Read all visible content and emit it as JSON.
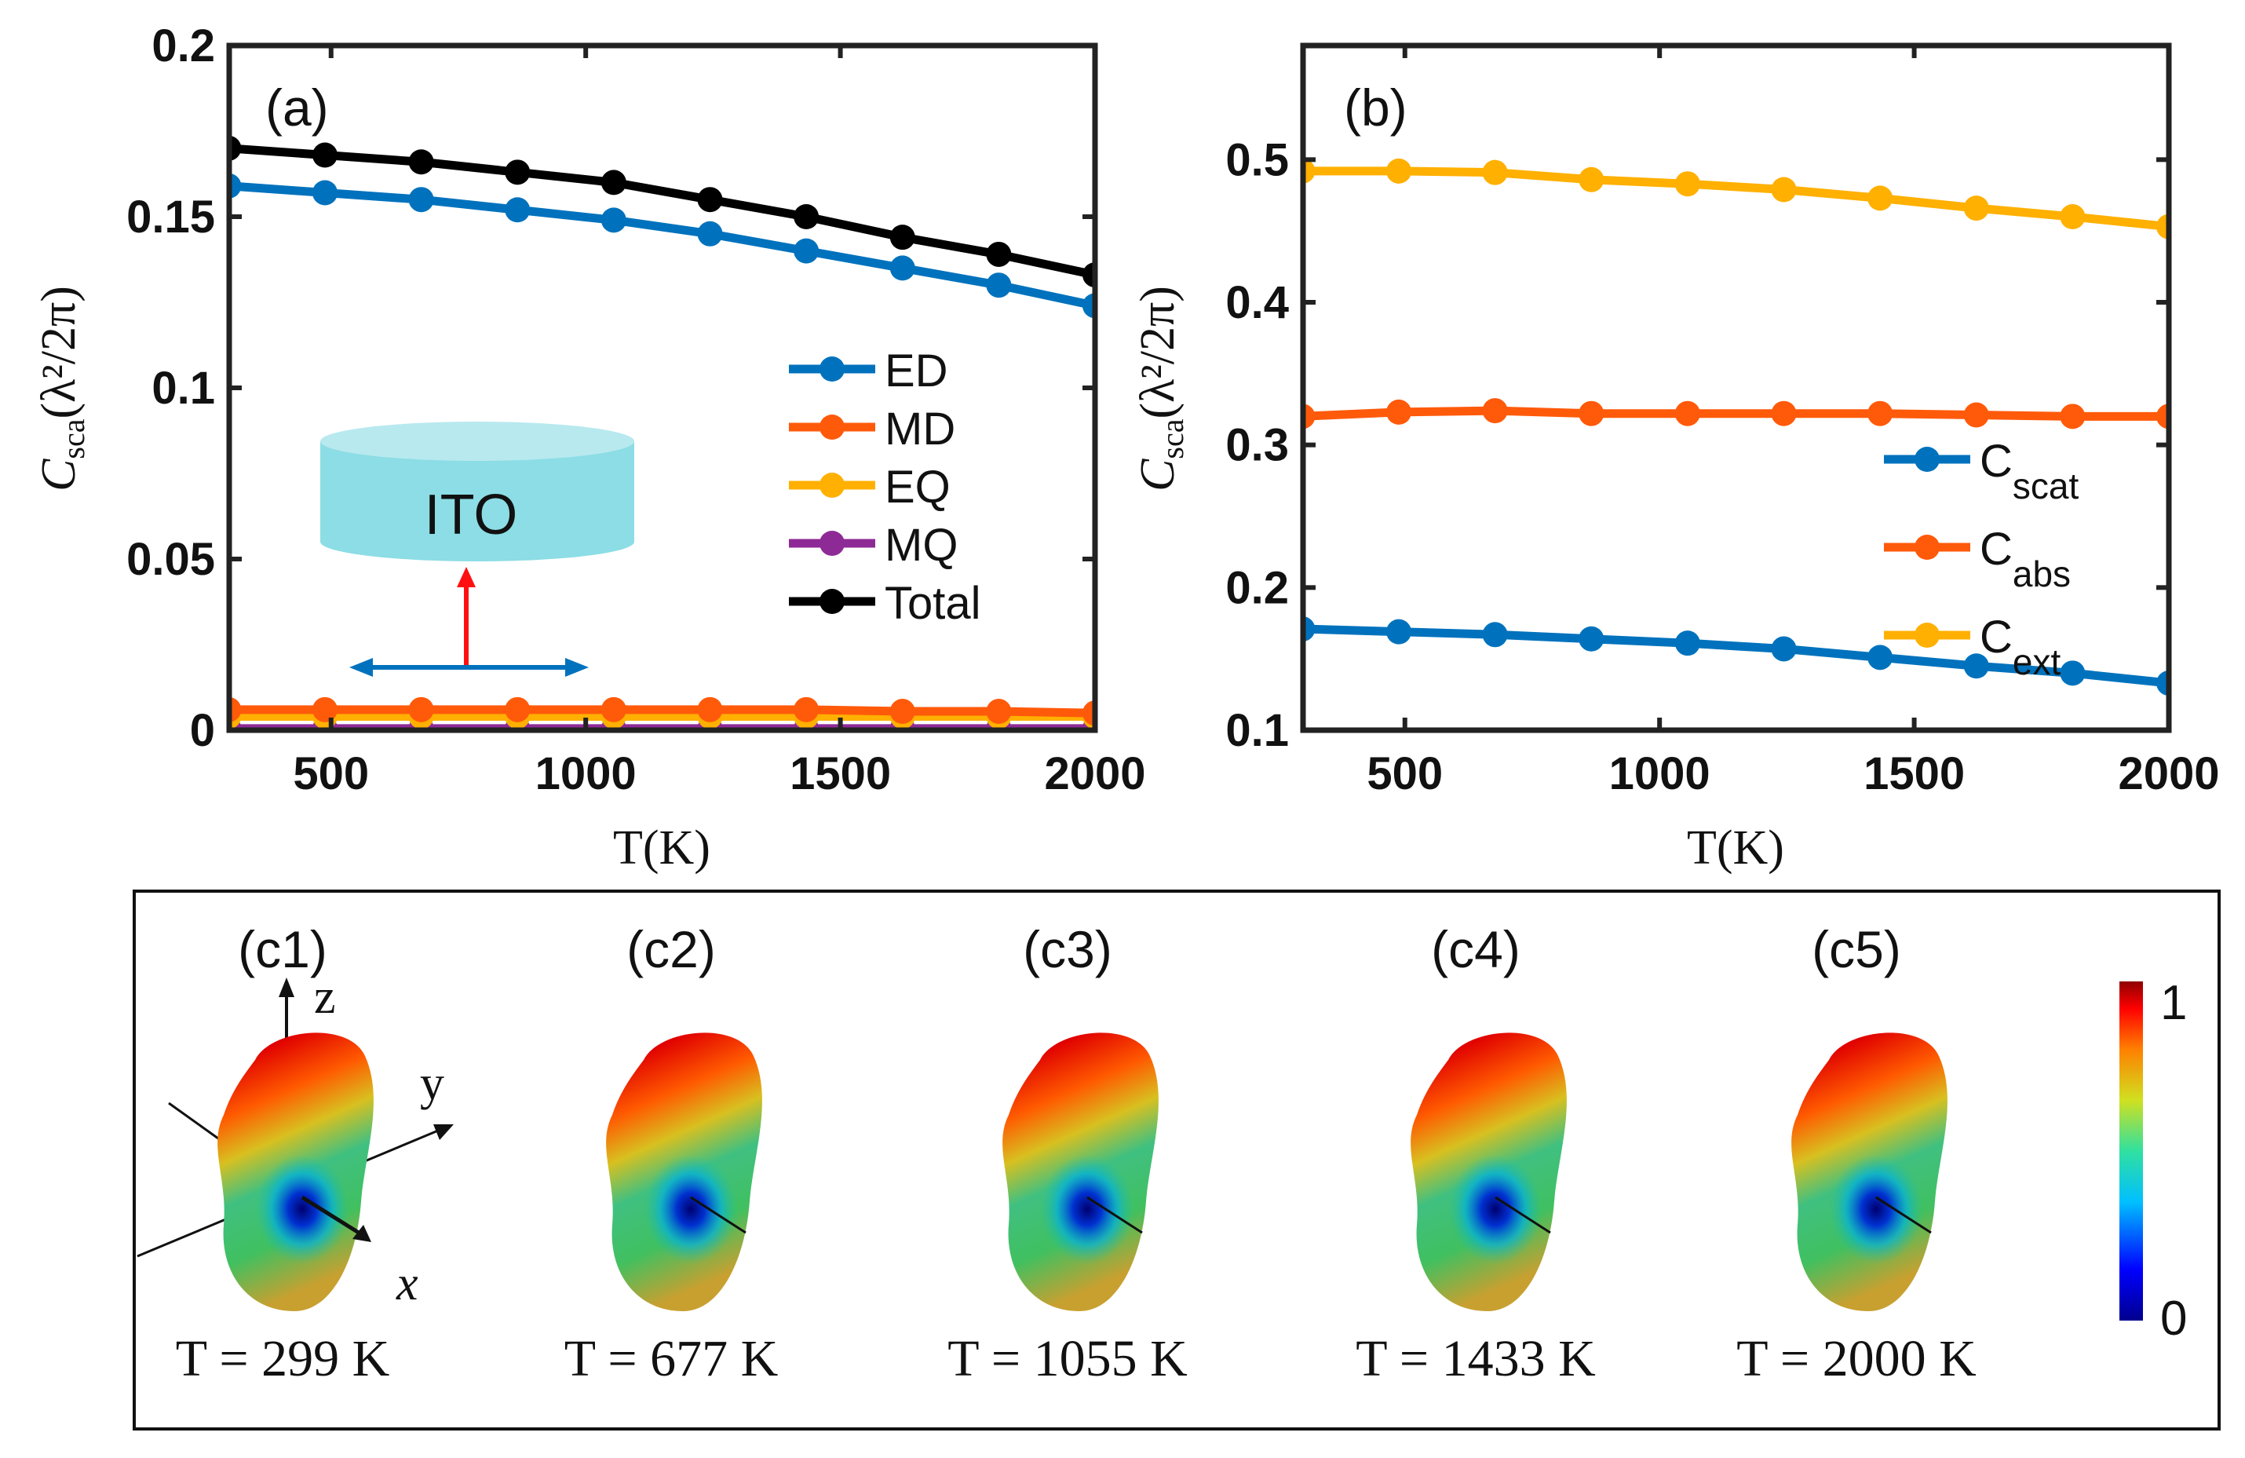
{
  "colors": {
    "ED": "#0072BD",
    "MD": "#FF5A0A",
    "EQ": "#FFB000",
    "MQ": "#8E2A96",
    "Total": "#000000",
    "scat": "#0072BD",
    "abs": "#FF5A0A",
    "ext": "#FFB000",
    "ito": "#8CDDE5",
    "arrow_red": "#FF1010",
    "arrow_blue": "#0072BD"
  },
  "chart_data": [
    {
      "type": "line",
      "panel_label": "(a)",
      "xlabel": "T(K)",
      "ylabel": "Csca(λ²/2π)",
      "xlim": [
        300,
        2000
      ],
      "ylim": [
        0,
        0.2
      ],
      "xticks": [
        500,
        1000,
        1500,
        2000
      ],
      "yticks": [
        0,
        0.05,
        0.1,
        0.15,
        0.2
      ],
      "ytick_labels": [
        "0",
        "0.05",
        "0.1",
        "0.15",
        "0.2"
      ],
      "x": [
        299,
        488,
        677,
        866,
        1055,
        1244,
        1433,
        1622,
        1811,
        2000
      ],
      "legend_position": "center-right",
      "inset_text": "ITO",
      "series": [
        {
          "name": "ED",
          "color_key": "ED",
          "values": [
            0.159,
            0.157,
            0.155,
            0.152,
            0.149,
            0.145,
            0.14,
            0.135,
            0.13,
            0.124
          ]
        },
        {
          "name": "MD",
          "color_key": "MD",
          "values": [
            0.006,
            0.006,
            0.006,
            0.006,
            0.006,
            0.006,
            0.006,
            0.0055,
            0.0055,
            0.005
          ]
        },
        {
          "name": "EQ",
          "color_key": "EQ",
          "values": [
            0.004,
            0.004,
            0.004,
            0.004,
            0.004,
            0.004,
            0.004,
            0.004,
            0.004,
            0.004
          ]
        },
        {
          "name": "MQ",
          "color_key": "MQ",
          "values": [
            0.0005,
            0.0005,
            0.0005,
            0.0005,
            0.0005,
            0.0005,
            0.0005,
            0.0005,
            0.0005,
            0.0005
          ]
        },
        {
          "name": "Total",
          "color_key": "Total",
          "values": [
            0.17,
            0.168,
            0.166,
            0.163,
            0.16,
            0.155,
            0.15,
            0.144,
            0.139,
            0.133
          ]
        }
      ]
    },
    {
      "type": "line",
      "panel_label": "(b)",
      "xlabel": "T(K)",
      "ylabel": "Csca(λ²/2π)",
      "xlim": [
        300,
        2000
      ],
      "ylim": [
        0.1,
        0.58
      ],
      "xticks": [
        500,
        1000,
        1500,
        2000
      ],
      "yticks": [
        0.1,
        0.2,
        0.3,
        0.4,
        0.5
      ],
      "ytick_labels": [
        "0.1",
        "0.2",
        "0.3",
        "0.4",
        "0.5"
      ],
      "x": [
        299,
        488,
        677,
        866,
        1055,
        1244,
        1433,
        1622,
        1811,
        2000
      ],
      "legend_position": "center-right",
      "series": [
        {
          "name": "C",
          "sub": "scat",
          "color_key": "scat",
          "values": [
            0.171,
            0.169,
            0.167,
            0.164,
            0.161,
            0.157,
            0.151,
            0.145,
            0.14,
            0.133
          ]
        },
        {
          "name": "C",
          "sub": "abs",
          "color_key": "abs",
          "values": [
            0.32,
            0.323,
            0.324,
            0.322,
            0.322,
            0.322,
            0.322,
            0.321,
            0.32,
            0.32
          ]
        },
        {
          "name": "C",
          "sub": "ext",
          "color_key": "ext",
          "values": [
            0.492,
            0.492,
            0.491,
            0.486,
            0.483,
            0.479,
            0.473,
            0.466,
            0.46,
            0.453
          ]
        }
      ]
    }
  ],
  "panel_c": {
    "axes_labels": {
      "z": "z",
      "y": "y",
      "x": "x"
    },
    "colorbar": {
      "min_label": "0",
      "max_label": "1"
    },
    "items": [
      {
        "label": "(c1)",
        "caption": "T = 299 K"
      },
      {
        "label": "(c2)",
        "caption": "T = 677 K"
      },
      {
        "label": "(c3)",
        "caption": "T = 1055 K"
      },
      {
        "label": "(c4)",
        "caption": "T = 1433 K"
      },
      {
        "label": "(c5)",
        "caption": "T = 2000 K"
      }
    ]
  }
}
